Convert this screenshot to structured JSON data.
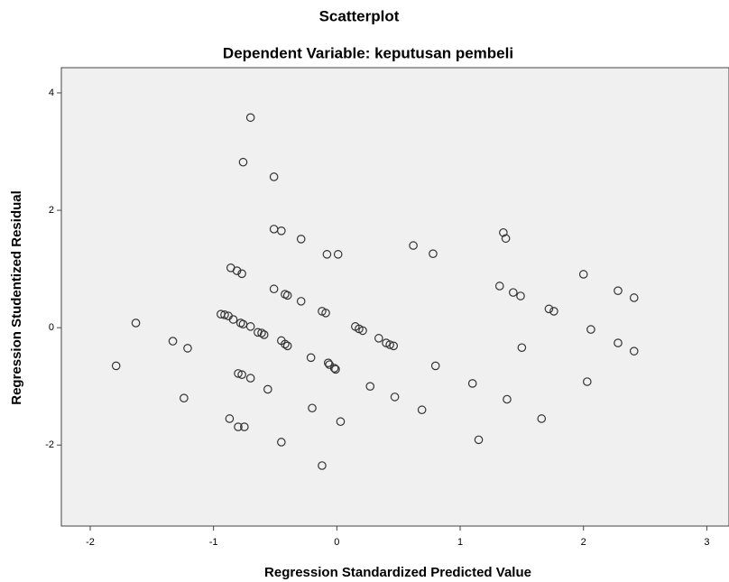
{
  "chart_data": {
    "type": "scatter",
    "title": "Scatterplot",
    "subtitle": "Dependent Variable: keputusan pembeli",
    "x_label": "Regression Standardized Predicted Value",
    "y_label": "Regression Studentized Residual",
    "xlim": [
      -2.234,
      3.18
    ],
    "ylim": [
      -3.38,
      4.43
    ],
    "xticks": [
      -2,
      -1,
      0,
      1,
      2,
      3
    ],
    "yticks": [
      -2,
      0,
      2,
      4
    ],
    "color": "#333333",
    "x": [
      -1.79,
      -1.63,
      -1.33,
      -1.21,
      -1.24,
      -0.94,
      -0.91,
      -0.88,
      -0.84,
      -0.86,
      -0.81,
      -0.77,
      -0.76,
      -0.78,
      -0.76,
      -0.7,
      -0.64,
      -0.61,
      -0.59,
      -0.8,
      -0.77,
      -0.7,
      -0.87,
      -0.8,
      -0.75,
      -0.7,
      -0.56,
      -0.51,
      -0.51,
      -0.45,
      -0.51,
      -0.42,
      -0.4,
      -0.29,
      -0.45,
      -0.42,
      -0.4,
      -0.45,
      -0.29,
      -0.21,
      -0.2,
      -0.12,
      -0.12,
      -0.09,
      -0.08,
      -0.07,
      -0.06,
      -0.02,
      0.01,
      -0.01,
      0.03,
      0.15,
      0.18,
      0.21,
      0.27,
      0.34,
      0.4,
      0.43,
      0.46,
      0.47,
      0.62,
      0.69,
      0.78,
      0.8,
      1.1,
      1.15,
      1.35,
      1.37,
      1.32,
      1.43,
      1.49,
      1.38,
      1.5,
      1.72,
      1.76,
      1.66,
      2.0,
      2.03,
      2.06,
      2.28,
      2.41,
      2.28,
      2.41
    ],
    "values": [
      -0.65,
      0.08,
      -0.23,
      -0.35,
      -1.2,
      0.23,
      0.22,
      0.2,
      0.14,
      1.02,
      0.97,
      0.92,
      2.82,
      0.08,
      0.06,
      0.02,
      -0.08,
      -0.09,
      -0.12,
      -0.78,
      -0.8,
      -0.86,
      -1.55,
      -1.69,
      -1.69,
      3.58,
      -1.05,
      2.57,
      1.68,
      1.65,
      0.66,
      0.57,
      0.55,
      0.45,
      -0.22,
      -0.28,
      -0.31,
      -1.95,
      1.51,
      -0.51,
      -1.37,
      -2.35,
      0.28,
      0.25,
      1.25,
      -0.6,
      -0.63,
      -0.69,
      1.25,
      -0.71,
      -1.6,
      0.02,
      -0.02,
      -0.05,
      -1.0,
      -0.18,
      -0.26,
      -0.29,
      -0.31,
      -1.18,
      1.4,
      -1.4,
      1.26,
      -0.65,
      -0.95,
      -1.91,
      1.62,
      1.52,
      0.71,
      0.6,
      0.54,
      -1.22,
      -0.34,
      0.32,
      0.28,
      -1.55,
      0.91,
      -0.92,
      -0.03,
      0.63,
      0.51,
      -0.26,
      -0.4
    ]
  }
}
